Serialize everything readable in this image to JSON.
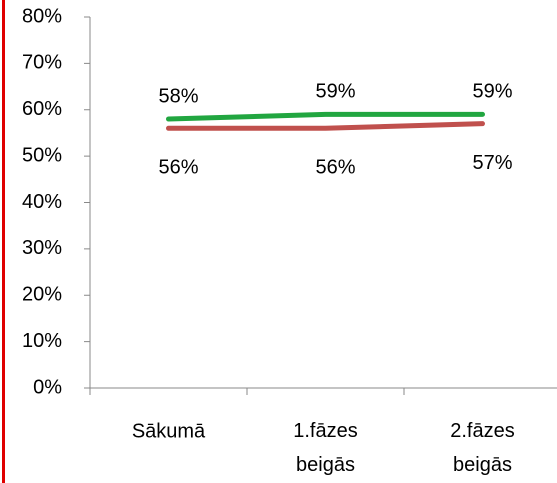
{
  "chart_data": {
    "type": "line",
    "categories": [
      "Sākumā",
      "1.fāzes beigās",
      "2.fāzes beigās"
    ],
    "series": [
      {
        "color": "#21a640",
        "values": [
          58,
          59,
          59
        ],
        "value_labels": [
          "58%",
          "59%",
          "59%"
        ]
      },
      {
        "color": "#c0504d",
        "values": [
          56,
          56,
          57
        ],
        "value_labels": [
          "56%",
          "56%",
          "57%"
        ]
      }
    ],
    "ylim": [
      0,
      80
    ],
    "yticks": [
      {
        "value": 0,
        "label": "0%"
      },
      {
        "value": 10,
        "label": "10%"
      },
      {
        "value": 20,
        "label": "20%"
      },
      {
        "value": 30,
        "label": "30%"
      },
      {
        "value": 40,
        "label": "40%"
      },
      {
        "value": 50,
        "label": "50%"
      },
      {
        "value": 60,
        "label": "60%"
      },
      {
        "value": 70,
        "label": "70%"
      },
      {
        "value": 80,
        "label": "80%"
      }
    ]
  }
}
